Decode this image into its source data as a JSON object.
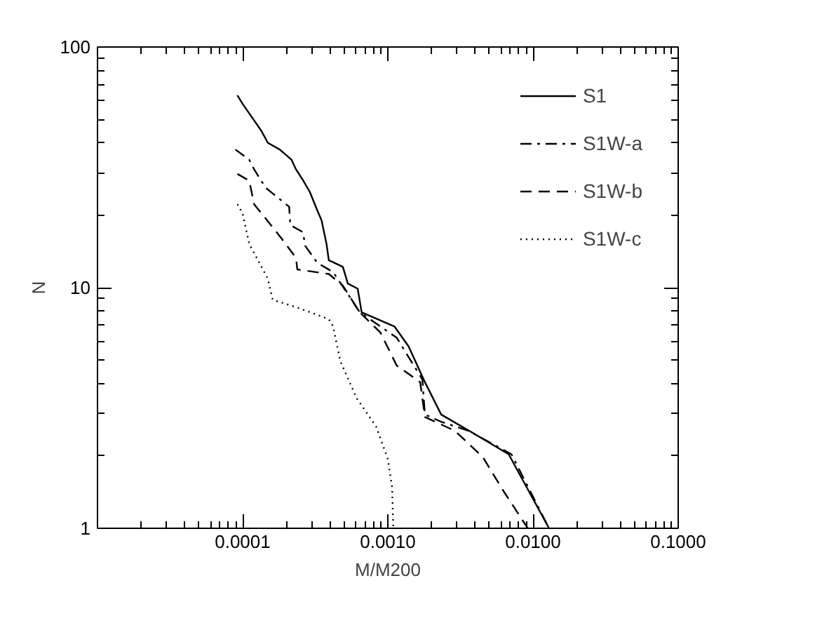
{
  "chart_data": {
    "type": "line",
    "xlabel": "M/M200",
    "ylabel": "N",
    "log": "xy",
    "grid": false,
    "legend": "top right",
    "xlim": [
      1e-05,
      0.1
    ],
    "ylim": [
      1,
      100
    ],
    "xticks": [
      {
        "value": 0.0001,
        "label": "0.0001"
      },
      {
        "value": 0.001,
        "label": "0.0010"
      },
      {
        "value": 0.01,
        "label": "0.0100"
      },
      {
        "value": 0.1,
        "label": "0.1000"
      }
    ],
    "yticks": [
      1,
      10,
      100
    ],
    "series": [
      {
        "name": "S1",
        "color": "#000000",
        "line_style": "solid",
        "x": [
          9.2e-05,
          0.0001,
          0.000111,
          0.000134,
          0.000149,
          0.00018,
          0.000217,
          0.000233,
          0.00026,
          0.00029,
          0.000326,
          0.00035,
          0.000378,
          0.000392,
          0.00049,
          0.00053,
          0.00062,
          0.00066,
          0.00111,
          0.00139,
          0.0018,
          0.00233,
          0.0039,
          0.0068,
          0.0129
        ],
        "values": [
          63,
          58,
          53,
          45,
          40,
          37.5,
          34,
          31,
          28,
          25,
          21,
          19,
          15.2,
          13,
          12.2,
          10.4,
          9.9,
          7.9,
          6.9,
          5.7,
          4.05,
          2.97,
          2.48,
          2.03,
          1
        ]
      },
      {
        "name": "S1W-a",
        "color": "#000000",
        "line_style": "dashdot",
        "x": [
          8.9e-05,
          0.000111,
          0.00012,
          0.000144,
          0.000209,
          0.000213,
          0.00026,
          0.00027,
          0.000326,
          0.00042,
          0.00055,
          0.00064,
          0.00115,
          0.00173,
          0.0018,
          0.00233,
          0.0036,
          0.0071,
          0.0129
        ],
        "values": [
          37.5,
          34,
          31,
          26,
          21.7,
          18.2,
          17,
          14.9,
          12.7,
          11.6,
          9.1,
          7.9,
          6.2,
          4.15,
          2.97,
          2.77,
          2.54,
          2.03,
          1
        ]
      },
      {
        "name": "S1W-b",
        "color": "#000000",
        "line_style": "dashed",
        "x": [
          9.2e-05,
          0.000111,
          0.00012,
          0.000139,
          0.000187,
          0.000233,
          0.000238,
          0.000392,
          0.00049,
          0.00064,
          0.00089,
          0.00115,
          0.00167,
          0.0018,
          0.0029,
          0.0045,
          0.0063,
          0.0092
        ],
        "values": [
          29.7,
          27.8,
          22.2,
          19.9,
          15.9,
          13.3,
          11.9,
          11.4,
          10.2,
          7.9,
          6.5,
          4.75,
          4.05,
          2.9,
          2.54,
          1.98,
          1.42,
          1
        ]
      },
      {
        "name": "S1W-c",
        "color": "#000000",
        "line_style": "dotted",
        "x": [
          9.2e-05,
          0.0001,
          0.000111,
          0.000149,
          0.000161,
          0.000233,
          0.000392,
          0.00042,
          0.00047,
          0.00061,
          0.00083,
          0.001,
          0.00107,
          0.00109
        ],
        "values": [
          22.2,
          20.3,
          15.2,
          10.9,
          8.9,
          8.3,
          7.4,
          6.9,
          4.96,
          3.47,
          2.65,
          1.94,
          1.48,
          1
        ]
      }
    ]
  }
}
